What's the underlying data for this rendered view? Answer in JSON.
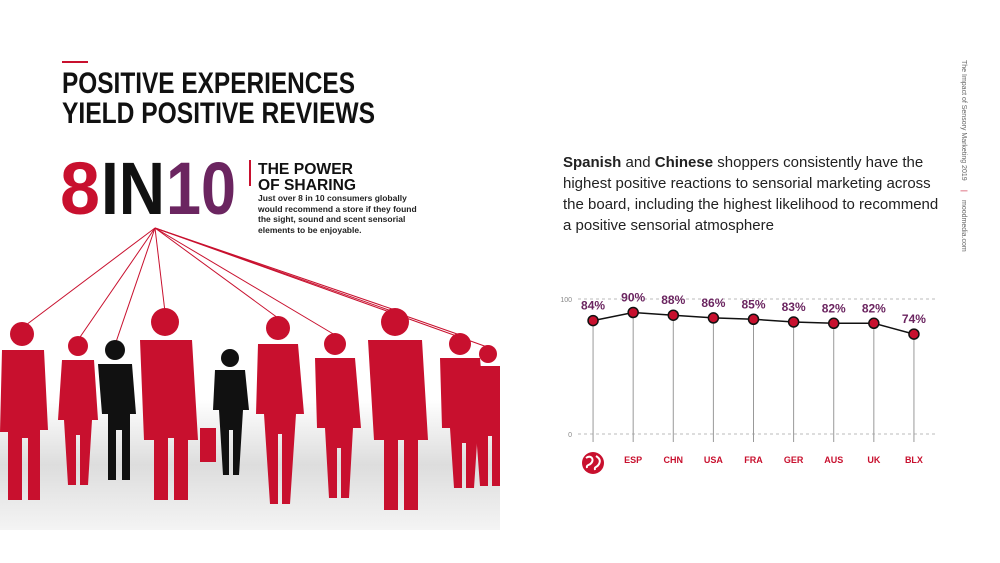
{
  "header": {
    "title_lines": [
      "POSITIVE EXPERIENCES",
      "YIELD POSITIVE REVIEWS"
    ]
  },
  "stat": {
    "parts": [
      "8",
      "IN",
      "10"
    ],
    "heading_lines": [
      "THE POWER",
      "OF SHARING"
    ],
    "body": "Just over 8 in 10 consumers globally would recommend a store if they found the sight, sound and scent sensorial elements to be enjoyable."
  },
  "sidebar": {
    "report": "The Impact of Sensory Marketing 2019",
    "site": "moodmedia.com"
  },
  "summary": {
    "segments": [
      {
        "text": "Spanish",
        "bold": true
      },
      {
        "text": " and ",
        "bold": false
      },
      {
        "text": "Chinese",
        "bold": true
      },
      {
        "text": " shoppers consistently have the highest positive reactions to sensorial marketing across the board, including the highest likelihood to recommend a positive sensorial atmosphere",
        "bold": false
      }
    ]
  },
  "chart_data": {
    "type": "line",
    "categories": [
      null,
      "ESP",
      "CHN",
      "USA",
      "FRA",
      "GER",
      "AUS",
      "UK",
      "BLX"
    ],
    "values": [
      84,
      90,
      88,
      86,
      85,
      83,
      82,
      82,
      74
    ],
    "value_labels": [
      "84%",
      "90%",
      "88%",
      "86%",
      "85%",
      "83%",
      "82%",
      "82%",
      "74%"
    ],
    "color": "#c8102e",
    "line_color": "#111111",
    "label_color": "#6b2560",
    "ylim": [
      0,
      100
    ],
    "yticks": [
      0,
      100
    ],
    "grid": true
  }
}
